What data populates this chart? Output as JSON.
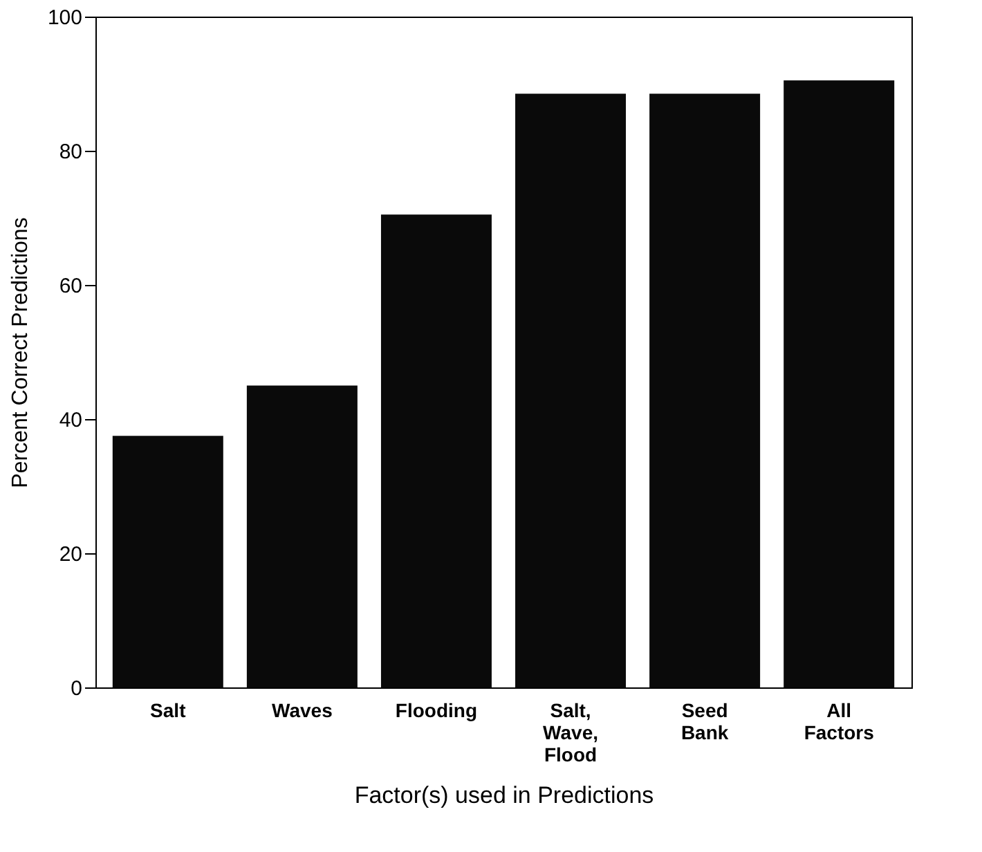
{
  "chart_data": {
    "type": "bar",
    "categories": [
      "Salt",
      "Waves",
      "Flooding",
      "Salt, Wave, Flood",
      "Seed Bank",
      "All Factors"
    ],
    "values": [
      37.5,
      45,
      70.5,
      88.5,
      88.5,
      90.5
    ],
    "color": "#0a0a0a",
    "xlabel": "Factor(s) used in Predictions",
    "ylabel": "Percent Correct Predictions",
    "ylim": [
      0,
      100
    ],
    "yticks": [
      0,
      20,
      40,
      60,
      80,
      100
    ],
    "grid": false
  }
}
